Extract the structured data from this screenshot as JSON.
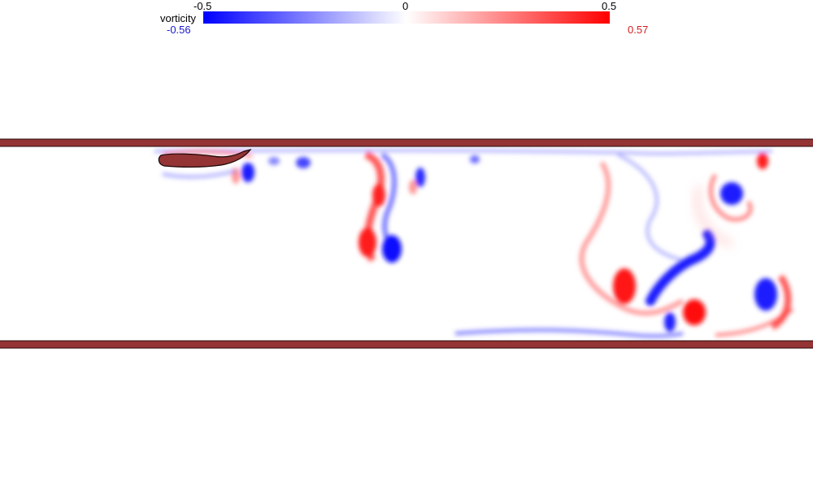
{
  "colorbar": {
    "title": "vorticity",
    "tick_min": "-0.5",
    "tick_mid": "0",
    "tick_max": "0.5",
    "data_min": "-0.56",
    "data_max": "0.57",
    "color_negative": "#0000ff",
    "color_zero": "#ffffff",
    "color_positive": "#ff0000",
    "min_label_color": "#1a1acc",
    "max_label_color": "#d42020"
  },
  "walls": {
    "color": "#943434"
  },
  "body": {
    "color": "#943434"
  }
}
